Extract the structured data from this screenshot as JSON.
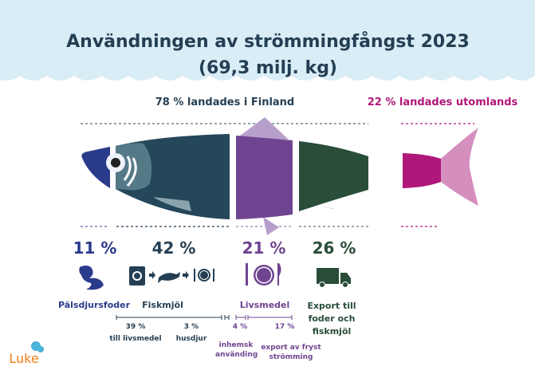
{
  "title_line1": "Användningen av strömmingfångst 2023",
  "title_line2": "(69,3 milj. kg)",
  "landed_finland": "78 % landades i Finland",
  "landed_abroad": "22 % landades utomlands",
  "categories": [
    {
      "percent": "11 %",
      "label": "Pälsdjursfoder",
      "icon": "mink-icon",
      "color": "#2b3b8c"
    },
    {
      "percent": "42 %",
      "label": "Fiskmjöl",
      "icon": "feed-to-fish-to-plate-icon",
      "color": "#243f54"
    },
    {
      "percent": "21 %",
      "label": "Livsmedel",
      "icon": "plate-cutlery-icon",
      "color": "#6f4490"
    },
    {
      "percent": "26 %",
      "label": "Export till foder och fiskmjöl",
      "icon": "truck-icon",
      "color": "#294d38"
    }
  ],
  "sub": [
    {
      "percent": "39 %",
      "label": "till livsmedel"
    },
    {
      "percent": "3 %",
      "label": "husdjur"
    },
    {
      "percent": "4 %",
      "label": "inhemsk använding"
    },
    {
      "percent": "17 %",
      "label": "export av fryst strömming"
    }
  ],
  "abroad_color": "#b0177a",
  "logo": "Luke"
}
